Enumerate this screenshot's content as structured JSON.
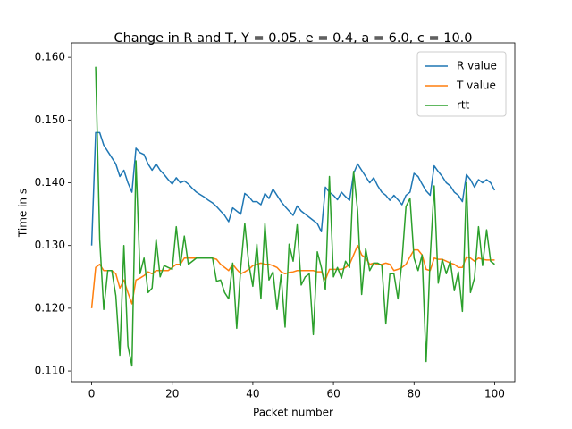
{
  "chart_data": {
    "type": "line",
    "title": "Change in R and T, Y = 0.05, e = 0.4, a = 6.0, c = 10.0",
    "x_label": "Packet number",
    "y_label": "Time in s",
    "x": [
      0,
      1,
      2,
      3,
      4,
      5,
      6,
      7,
      8,
      9,
      10,
      11,
      12,
      13,
      14,
      15,
      16,
      17,
      18,
      19,
      20,
      21,
      22,
      23,
      24,
      25,
      26,
      27,
      28,
      29,
      30,
      31,
      32,
      33,
      34,
      35,
      36,
      37,
      38,
      39,
      40,
      41,
      42,
      43,
      44,
      45,
      46,
      47,
      48,
      49,
      50,
      51,
      52,
      53,
      54,
      55,
      56,
      57,
      58,
      59,
      60,
      61,
      62,
      63,
      64,
      65,
      66,
      67,
      68,
      69,
      70,
      71,
      72,
      73,
      74,
      75,
      76,
      77,
      78,
      79,
      80,
      81,
      82,
      83,
      84,
      85,
      86,
      87,
      88,
      89,
      90,
      91,
      92,
      93,
      94,
      95,
      96,
      97,
      98,
      99,
      100
    ],
    "series": [
      {
        "name": "R value",
        "color": "#1f77b4",
        "values": [
          0.13,
          0.148,
          0.148,
          0.146,
          0.145,
          0.144,
          0.143,
          0.141,
          0.142,
          0.14,
          0.1385,
          0.1455,
          0.1448,
          0.1445,
          0.143,
          0.142,
          0.143,
          0.142,
          0.1413,
          0.1405,
          0.1398,
          0.1408,
          0.14,
          0.1403,
          0.1398,
          0.1391,
          0.1385,
          0.1381,
          0.1377,
          0.1372,
          0.1368,
          0.1362,
          0.1355,
          0.1348,
          0.1338,
          0.136,
          0.1355,
          0.135,
          0.1383,
          0.1378,
          0.137,
          0.137,
          0.1365,
          0.1383,
          0.1375,
          0.139,
          0.138,
          0.137,
          0.1362,
          0.1355,
          0.1348,
          0.1363,
          0.1355,
          0.135,
          0.1345,
          0.134,
          0.1335,
          0.1322,
          0.1393,
          0.1385,
          0.138,
          0.1373,
          0.1385,
          0.1378,
          0.1372,
          0.1415,
          0.143,
          0.142,
          0.141,
          0.14,
          0.1408,
          0.1395,
          0.1385,
          0.138,
          0.1372,
          0.138,
          0.1373,
          0.1365,
          0.138,
          0.1385,
          0.1415,
          0.141,
          0.1398,
          0.1387,
          0.138,
          0.1427,
          0.1418,
          0.141,
          0.14,
          0.1395,
          0.1385,
          0.138,
          0.137,
          0.1413,
          0.1405,
          0.1393,
          0.1405,
          0.14,
          0.1405,
          0.14,
          0.1388
        ]
      },
      {
        "name": "T value",
        "color": "#ff7f0e",
        "values": [
          0.12,
          0.1265,
          0.127,
          0.126,
          0.126,
          0.126,
          0.1255,
          0.1232,
          0.1245,
          0.1225,
          0.1207,
          0.1245,
          0.1248,
          0.1252,
          0.1258,
          0.1255,
          0.126,
          0.126,
          0.126,
          0.126,
          0.1265,
          0.127,
          0.127,
          0.128,
          0.128,
          0.128,
          0.128,
          0.128,
          0.128,
          0.128,
          0.128,
          0.1278,
          0.127,
          0.1265,
          0.126,
          0.127,
          0.1262,
          0.1255,
          0.1258,
          0.1262,
          0.1268,
          0.127,
          0.1272,
          0.127,
          0.127,
          0.1268,
          0.1265,
          0.1258,
          0.1255,
          0.1257,
          0.1258,
          0.126,
          0.126,
          0.126,
          0.126,
          0.126,
          0.1258,
          0.1258,
          0.1245,
          0.1262,
          0.1262,
          0.1262,
          0.1262,
          0.1265,
          0.127,
          0.1285,
          0.13,
          0.1285,
          0.128,
          0.127,
          0.1272,
          0.127,
          0.127,
          0.1272,
          0.127,
          0.126,
          0.1262,
          0.1265,
          0.127,
          0.1282,
          0.1293,
          0.1293,
          0.1285,
          0.1262,
          0.126,
          0.128,
          0.1278,
          0.1278,
          0.1275,
          0.1272,
          0.127,
          0.1265,
          0.1265,
          0.1282,
          0.128,
          0.1275,
          0.128,
          0.1278,
          0.1277,
          0.1277,
          0.1277
        ]
      },
      {
        "name": "rtt",
        "color": "#2ca02c",
        "values": [
          null,
          0.1585,
          0.131,
          0.1198,
          0.126,
          0.126,
          0.122,
          0.1125,
          0.13,
          0.114,
          0.1108,
          0.1435,
          0.1255,
          0.128,
          0.1225,
          0.1232,
          0.131,
          0.125,
          0.1268,
          0.1265,
          0.1262,
          0.133,
          0.1268,
          0.1315,
          0.127,
          0.1275,
          0.128,
          0.128,
          0.128,
          0.128,
          0.128,
          0.1243,
          0.1245,
          0.1225,
          0.1215,
          0.1272,
          0.1168,
          0.1265,
          0.1335,
          0.127,
          0.1235,
          0.1302,
          0.1215,
          0.1335,
          0.1245,
          0.1258,
          0.1198,
          0.1253,
          0.117,
          0.1302,
          0.1275,
          0.1333,
          0.1237,
          0.125,
          0.1255,
          0.1158,
          0.129,
          0.1265,
          0.123,
          0.141,
          0.125,
          0.1265,
          0.1248,
          0.1275,
          0.1265,
          0.1418,
          0.1355,
          0.1222,
          0.1295,
          0.126,
          0.1272,
          0.1272,
          0.1268,
          0.1175,
          0.1255,
          0.1255,
          0.1215,
          0.1275,
          0.1362,
          0.1375,
          0.128,
          0.126,
          0.1285,
          0.1115,
          0.128,
          0.1395,
          0.124,
          0.1278,
          0.1255,
          0.1275,
          0.1228,
          0.1258,
          0.1195,
          0.14,
          0.1225,
          0.1248,
          0.133,
          0.1268,
          0.1325,
          0.1275,
          0.127
        ]
      }
    ],
    "xlim": [
      -5,
      105
    ],
    "ylim": [
      0.1083,
      0.1623
    ],
    "xticks": [
      0,
      20,
      40,
      60,
      80,
      100
    ],
    "yticks": [
      {
        "value": 0.11,
        "label": "0.110"
      },
      {
        "value": 0.12,
        "label": "0.120"
      },
      {
        "value": 0.13,
        "label": "0.130"
      },
      {
        "value": 0.14,
        "label": "0.140"
      },
      {
        "value": 0.15,
        "label": "0.150"
      },
      {
        "value": 0.16,
        "label": "0.160"
      }
    ],
    "legend": "upper right",
    "grid": false
  }
}
